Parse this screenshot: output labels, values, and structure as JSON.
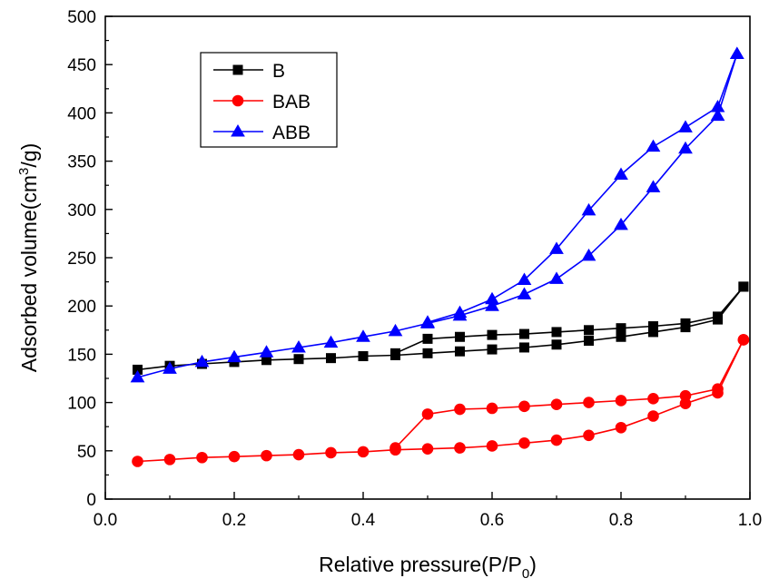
{
  "chart_data": {
    "type": "line",
    "title": "",
    "xlabel": {
      "main": "Relative pressure(P/P",
      "sub": "0",
      "tail": ")"
    },
    "ylabel": {
      "main": "Adsorbed volume(cm",
      "sup": "3",
      "tail": "/g)"
    },
    "xlim": [
      0.0,
      1.0
    ],
    "ylim": [
      0,
      500
    ],
    "xticks": [
      "0.0",
      "0.2",
      "0.4",
      "0.6",
      "0.8",
      "1.0"
    ],
    "yticks": [
      "0",
      "50",
      "100",
      "150",
      "200",
      "250",
      "300",
      "350",
      "400",
      "450",
      "500"
    ],
    "legend_position": "top-left",
    "series": [
      {
        "name": "B",
        "color": "#000000",
        "marker": "square",
        "adsorption": {
          "x": [
            0.05,
            0.1,
            0.15,
            0.2,
            0.25,
            0.3,
            0.35,
            0.4,
            0.45,
            0.5,
            0.55,
            0.6,
            0.65,
            0.7,
            0.75,
            0.8,
            0.85,
            0.9,
            0.95,
            0.99
          ],
          "y": [
            134,
            138,
            140,
            142,
            144,
            145,
            146,
            148,
            149,
            151,
            153,
            155,
            157,
            160,
            164,
            168,
            173,
            178,
            186,
            220
          ]
        },
        "desorption": {
          "x": [
            0.99,
            0.95,
            0.9,
            0.85,
            0.8,
            0.75,
            0.7,
            0.65,
            0.6,
            0.55,
            0.5,
            0.45
          ],
          "y": [
            220,
            189,
            182,
            179,
            177,
            175,
            173,
            171,
            170,
            168,
            166,
            151
          ]
        }
      },
      {
        "name": "BAB",
        "color": "#ff0000",
        "marker": "circle",
        "adsorption": {
          "x": [
            0.05,
            0.1,
            0.15,
            0.2,
            0.25,
            0.3,
            0.35,
            0.4,
            0.45,
            0.5,
            0.55,
            0.6,
            0.65,
            0.7,
            0.75,
            0.8,
            0.85,
            0.9,
            0.95,
            0.99
          ],
          "y": [
            39,
            41,
            43,
            44,
            45,
            46,
            48,
            49,
            51,
            52,
            53,
            55,
            58,
            61,
            66,
            74,
            86,
            99,
            110,
            165
          ]
        },
        "desorption": {
          "x": [
            0.99,
            0.95,
            0.9,
            0.85,
            0.8,
            0.75,
            0.7,
            0.65,
            0.6,
            0.55,
            0.5,
            0.45
          ],
          "y": [
            165,
            114,
            107,
            104,
            102,
            100,
            98,
            96,
            94,
            93,
            88,
            53
          ]
        }
      },
      {
        "name": "ABB",
        "color": "#0000ff",
        "marker": "triangle",
        "adsorption": {
          "x": [
            0.05,
            0.1,
            0.15,
            0.2,
            0.25,
            0.3,
            0.35,
            0.4,
            0.45,
            0.5,
            0.55,
            0.6,
            0.65,
            0.7,
            0.75,
            0.8,
            0.85,
            0.9,
            0.95,
            0.98
          ],
          "y": [
            126,
            135,
            142,
            147,
            152,
            157,
            162,
            168,
            174,
            182,
            190,
            200,
            212,
            228,
            252,
            284,
            323,
            363,
            397,
            461
          ]
        },
        "desorption": {
          "x": [
            0.98,
            0.95,
            0.9,
            0.85,
            0.8,
            0.75,
            0.7,
            0.65,
            0.6,
            0.55,
            0.5
          ],
          "y": [
            461,
            406,
            385,
            365,
            336,
            299,
            259,
            227,
            207,
            193,
            183
          ]
        }
      }
    ]
  }
}
